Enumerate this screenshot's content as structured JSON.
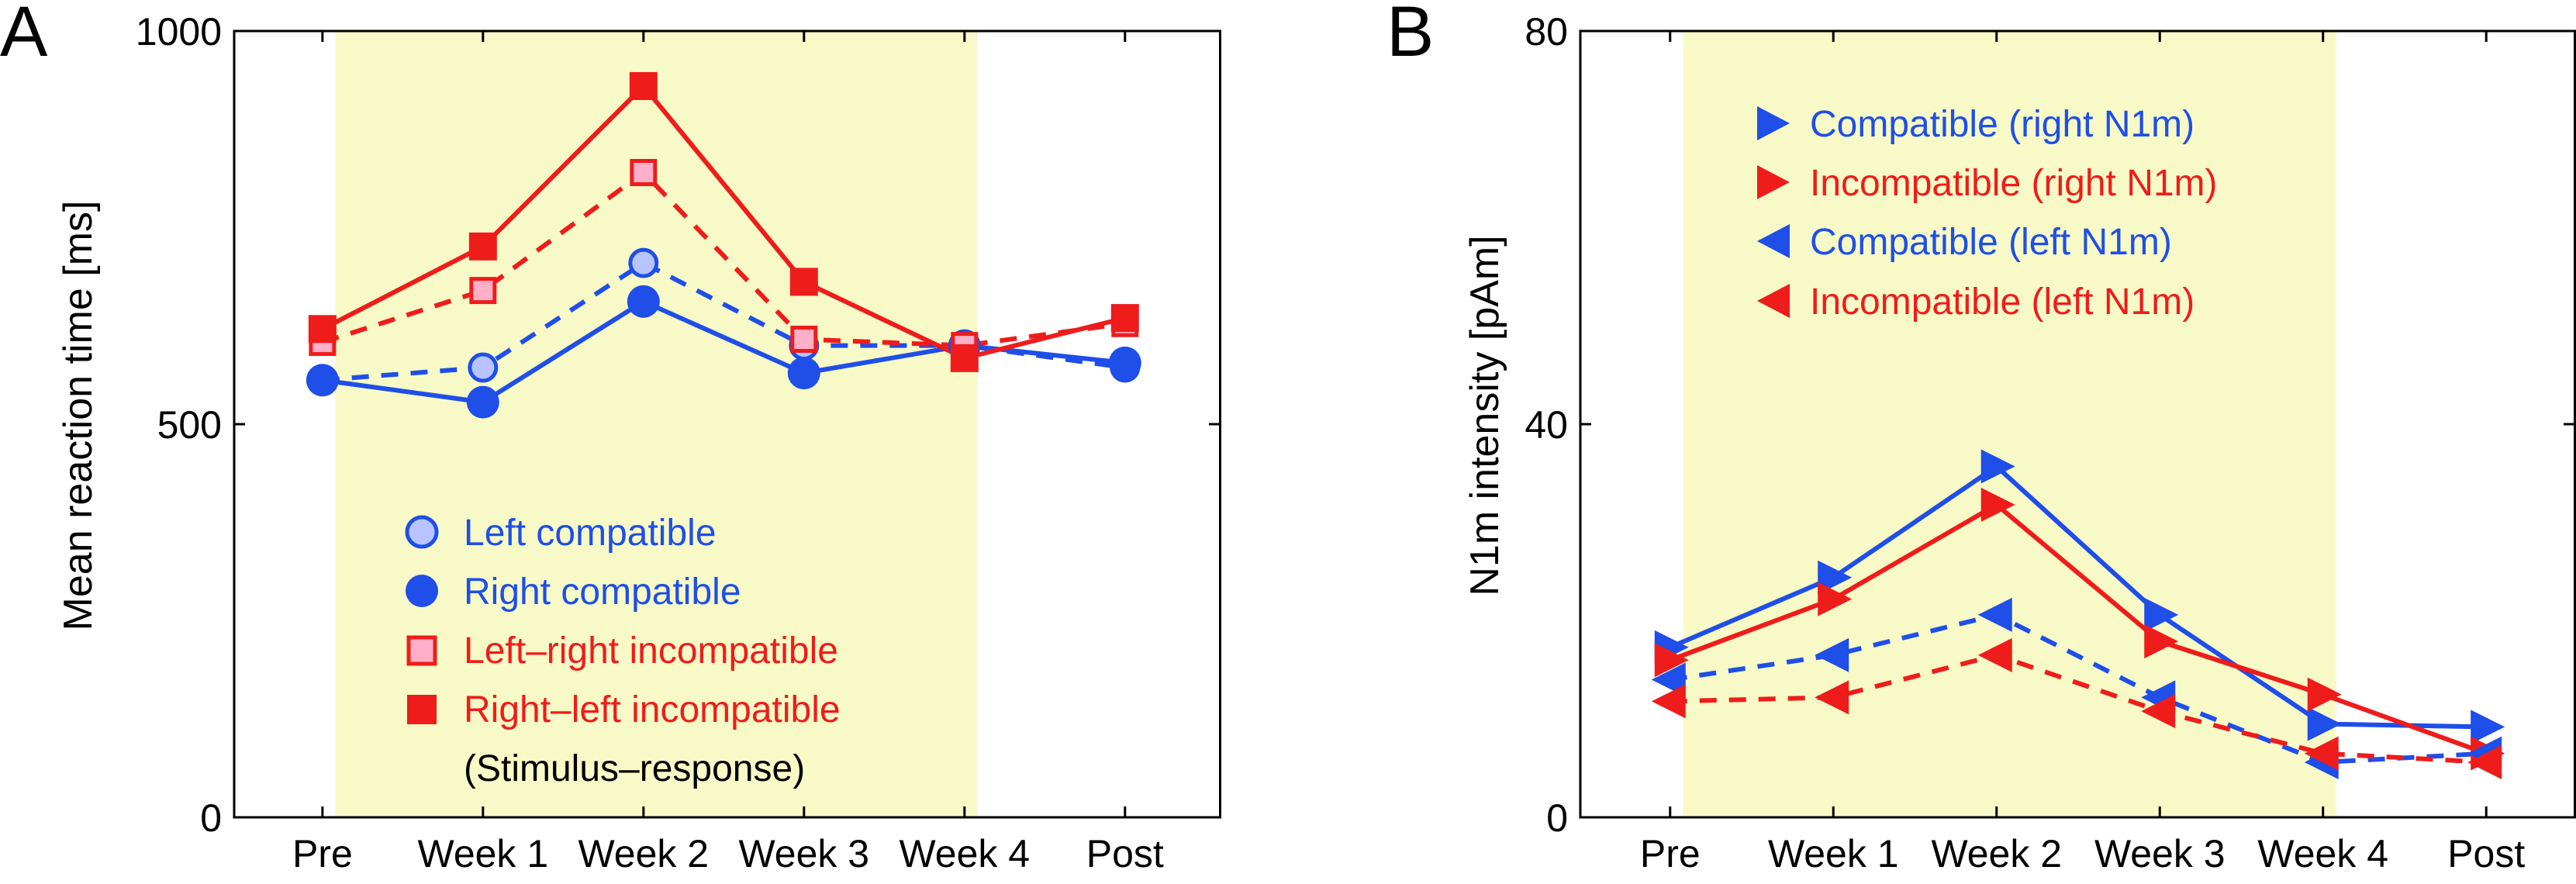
{
  "colors": {
    "blue": "#1f4ee8",
    "red": "#ef1c1c",
    "light_blue_fill": "#b7c4ff",
    "pink_fill": "#ffb0c8",
    "shade": "#f7fac6",
    "legend_note": "#000000"
  },
  "chart_data": [
    {
      "type": "line",
      "panel_label": "A",
      "ylabel": "Mean reaction time [ms]",
      "categories": [
        "Pre",
        "Week 1",
        "Week 2",
        "Week 3",
        "Week 4",
        "Post"
      ],
      "x_positions": [
        0,
        1,
        2,
        3,
        4,
        5.0
      ],
      "xlim": [
        -0.55,
        5.6
      ],
      "ylim": [
        0,
        1000
      ],
      "yticks": [
        0,
        500,
        1000
      ],
      "shaded_x_range": [
        0.08,
        4.08
      ],
      "series": [
        {
          "name": "Left compatible",
          "color": "blue",
          "dash": true,
          "marker": "circle-open",
          "values": [
            556,
            572,
            705,
            600,
            600,
            572
          ]
        },
        {
          "name": "Right compatible",
          "color": "blue",
          "dash": false,
          "marker": "circle",
          "values": [
            556,
            528,
            656,
            565,
            600,
            578
          ]
        },
        {
          "name": "Left–right incompatible",
          "color": "red",
          "dash": true,
          "marker": "square-open",
          "values": [
            604,
            670,
            820,
            608,
            600,
            628
          ]
        },
        {
          "name": "Right–left incompatible",
          "color": "red",
          "dash": false,
          "marker": "square",
          "values": [
            621,
            726,
            930,
            681,
            584,
            635
          ]
        }
      ],
      "legend_note": "(Stimulus–response)",
      "legend_position": "lower-center"
    },
    {
      "type": "line",
      "panel_label": "B",
      "ylabel": "N1m intensity [pAm]",
      "categories": [
        "Pre",
        "Week 1",
        "Week 2",
        "Week 3",
        "Week 4",
        "Post"
      ],
      "x_positions": [
        0,
        1,
        2,
        3,
        4,
        5.0
      ],
      "xlim": [
        -0.55,
        5.55
      ],
      "ylim": [
        0,
        80
      ],
      "yticks": [
        0,
        40,
        80
      ],
      "shaded_x_range": [
        0.08,
        4.08
      ],
      "series": [
        {
          "name": "Compatible (right N1m)",
          "color": "blue",
          "dash": false,
          "marker": "triangle-right",
          "values": [
            17.3,
            24.4,
            35.7,
            20.6,
            9.5,
            9.2
          ]
        },
        {
          "name": "Incompatible (right N1m)",
          "color": "red",
          "dash": false,
          "marker": "triangle-right",
          "values": [
            16.0,
            22.2,
            31.8,
            17.9,
            12.5,
            6.5
          ]
        },
        {
          "name": "Compatible (left N1m)",
          "color": "blue",
          "dash": true,
          "marker": "triangle-left",
          "values": [
            14.0,
            16.5,
            20.6,
            12.2,
            5.6,
            6.5
          ]
        },
        {
          "name": "Incompatible (left N1m)",
          "color": "red",
          "dash": true,
          "marker": "triangle-left",
          "values": [
            11.8,
            12.2,
            16.5,
            10.8,
            6.5,
            5.6
          ]
        }
      ],
      "legend_position": "top-left"
    }
  ]
}
